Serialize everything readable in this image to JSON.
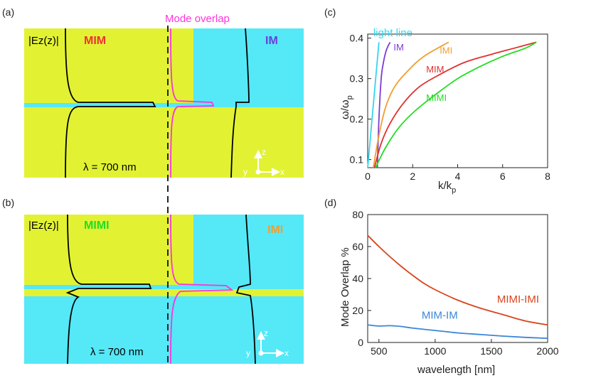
{
  "colors": {
    "metal": "#e2f233",
    "dielectric": "#55e8f7",
    "field": "#000000",
    "overlap": "#ff33dd",
    "c_lightline": "#33d6ee",
    "c_im": "#7a3cd6",
    "c_imi": "#f0a030",
    "c_mim": "#e03030",
    "c_mimi": "#22dd22",
    "d_mimi_imi": "#d9441c",
    "d_mim_im": "#3a86d9",
    "text_mim": "#ee3333",
    "text_im": "#6a3fd8",
    "text_mimi": "#22dd22",
    "text_imi": "#f0a030"
  },
  "panel_a": {
    "tag": "(a)",
    "overlap_label": "Mode overlap",
    "field_label": "|Ez(z)|",
    "left_label": "MIM",
    "right_label": "IM",
    "wavelength": "λ = 700 nm",
    "axis_z": "z",
    "axis_y": "y",
    "axis_x": "x"
  },
  "panel_b": {
    "tag": "(b)",
    "field_label": "|Ez(z)|",
    "left_label": "MIMI",
    "right_label": "IMI",
    "wavelength": "λ = 700 nm",
    "axis_z": "z",
    "axis_y": "y",
    "axis_x": "x"
  },
  "chart_data": [
    {
      "tag": "(c)",
      "type": "line",
      "xlabel_main": "k/k",
      "xlabel_sub": "p",
      "ylabel_main": "ω/ω",
      "ylabel_sub": "p",
      "xlim": [
        0,
        8
      ],
      "ylim": [
        0.08,
        0.41
      ],
      "xticks": [
        0,
        2,
        4,
        6,
        8
      ],
      "yticks": [
        0.1,
        0.2,
        0.3,
        0.4
      ],
      "series": [
        {
          "name": "light line",
          "color_key": "c_lightline",
          "x": [
            0.0,
            0.5
          ],
          "y": [
            0.08,
            0.39
          ]
        },
        {
          "name": "IM",
          "color_key": "c_im",
          "x": [
            0.43,
            0.5,
            0.6,
            0.7,
            0.8,
            0.9,
            1.0
          ],
          "y": [
            0.08,
            0.2,
            0.3,
            0.34,
            0.365,
            0.38,
            0.39
          ]
        },
        {
          "name": "IMI",
          "color_key": "c_imi",
          "x": [
            0.25,
            0.5,
            0.8,
            1.2,
            1.8,
            2.5,
            3.6
          ],
          "y": [
            0.08,
            0.16,
            0.23,
            0.28,
            0.32,
            0.355,
            0.39
          ]
        },
        {
          "name": "MIM",
          "color_key": "c_mim",
          "x": [
            0.3,
            0.6,
            1.0,
            1.6,
            2.3,
            3.2,
            4.3,
            5.5,
            6.5,
            7.5
          ],
          "y": [
            0.08,
            0.14,
            0.19,
            0.24,
            0.28,
            0.31,
            0.34,
            0.36,
            0.375,
            0.39
          ]
        },
        {
          "name": "MIMI",
          "color_key": "c_mimi",
          "x": [
            0.35,
            0.8,
            1.4,
            2.1,
            3.0,
            4.0,
            5.0,
            6.0,
            7.0,
            7.5
          ],
          "y": [
            0.08,
            0.13,
            0.18,
            0.22,
            0.26,
            0.3,
            0.33,
            0.355,
            0.375,
            0.39
          ]
        }
      ],
      "labels": [
        {
          "text": "light line",
          "x": 0.25,
          "y": 0.405,
          "color_key": "c_lightline",
          "size": 15
        },
        {
          "text": "IM",
          "x": 1.15,
          "y": 0.37,
          "color_key": "c_im",
          "size": 13
        },
        {
          "text": "IMI",
          "x": 3.2,
          "y": 0.362,
          "color_key": "c_imi",
          "size": 13
        },
        {
          "text": "MIM",
          "x": 2.6,
          "y": 0.315,
          "color_key": "c_mim",
          "size": 13
        },
        {
          "text": "MIMI",
          "x": 2.6,
          "y": 0.245,
          "color_key": "c_mimi",
          "size": 13
        }
      ]
    },
    {
      "tag": "(d)",
      "type": "line",
      "xlabel": "wavelength [nm]",
      "ylabel": "Mode Overlap %",
      "xlim": [
        400,
        2000
      ],
      "ylim": [
        0,
        80
      ],
      "xticks": [
        500,
        1000,
        1500,
        2000
      ],
      "yticks": [
        0,
        20,
        40,
        60,
        80
      ],
      "series": [
        {
          "name": "MIMI-IMI",
          "color_key": "d_mimi_imi",
          "x": [
            400,
            500,
            600,
            700,
            800,
            900,
            1000,
            1200,
            1400,
            1600,
            1800,
            2000
          ],
          "y": [
            67,
            60,
            53.5,
            47.5,
            42,
            37,
            33,
            26.5,
            21.5,
            17.5,
            13.5,
            11
          ]
        },
        {
          "name": "MIM-IM",
          "color_key": "d_mim_im",
          "x": [
            400,
            500,
            600,
            700,
            800,
            1000,
            1200,
            1400,
            1600,
            1800,
            2000
          ],
          "y": [
            11,
            10.3,
            10.5,
            10,
            9,
            7.5,
            6,
            5,
            4,
            3.2,
            2.6
          ]
        }
      ],
      "labels": [
        {
          "text": "MIMI-IMI",
          "x": 1550,
          "y": 25,
          "color_key": "d_mimi_imi",
          "size": 15
        },
        {
          "text": "MIM-IM",
          "x": 880,
          "y": 15,
          "color_key": "d_mim_im",
          "size": 15
        }
      ]
    }
  ]
}
